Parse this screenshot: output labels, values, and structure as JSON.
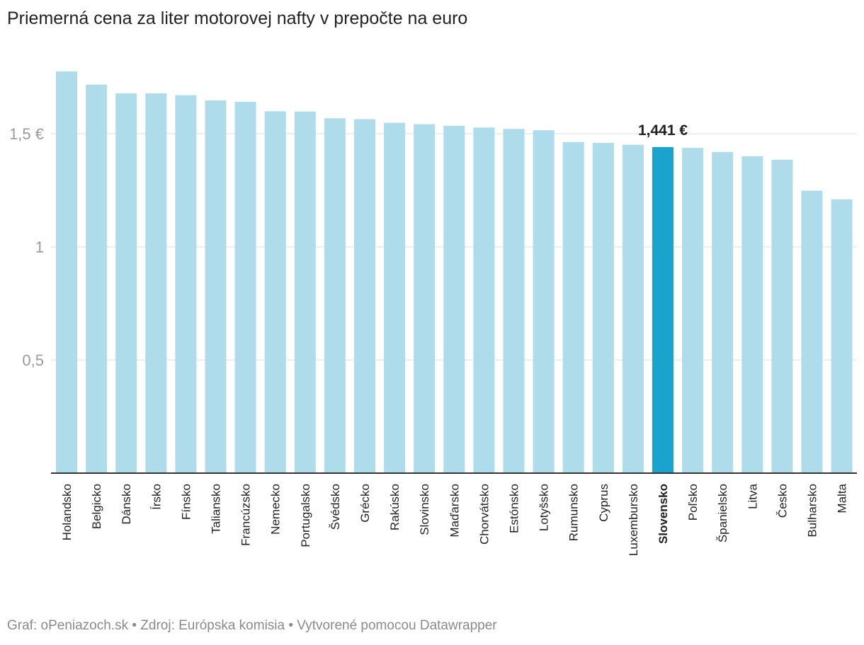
{
  "title": "Priemerná cena za liter motorovej nafty v prepočte na euro",
  "footer": "Graf: oPeniazoch.sk • Zdroj: Európska komisia • Vytvorené pomocou Datawrapper",
  "colors": {
    "bar": "#aedcea",
    "highlight": "#1aa3cc",
    "grid": "#dddddd",
    "axis": "#333333"
  },
  "chart_data": {
    "type": "bar",
    "title": "Priemerná cena za liter motorovej nafty v prepočte na euro",
    "xlabel": "",
    "ylabel": "",
    "ylim": [
      0,
      1.8
    ],
    "yticks": [
      {
        "value": 0.5,
        "label": "0,5"
      },
      {
        "value": 1,
        "label": "1"
      },
      {
        "value": 1.5,
        "label": "1,5 €"
      }
    ],
    "grid": true,
    "highlight_category": "Slovensko",
    "highlight_label": "1,441 €",
    "categories": [
      "Holandsko",
      "Belgicko",
      "Dánsko",
      "Írsko",
      "Fínsko",
      "Taliansko",
      "Francúzsko",
      "Nemecko",
      "Portugalsko",
      "Švédsko",
      "Grécko",
      "Rakúsko",
      "Slovinsko",
      "Maďarsko",
      "Chorvátsko",
      "Estónsko",
      "Lotyšsko",
      "Rumunsko",
      "Cyprus",
      "Luxembursko",
      "Slovensko",
      "Poľsko",
      "Španielsko",
      "Litva",
      "Česko",
      "Bulharsko",
      "Malta"
    ],
    "values": [
      1.775,
      1.717,
      1.678,
      1.678,
      1.67,
      1.647,
      1.641,
      1.599,
      1.598,
      1.568,
      1.564,
      1.548,
      1.542,
      1.535,
      1.527,
      1.521,
      1.515,
      1.463,
      1.459,
      1.451,
      1.441,
      1.437,
      1.419,
      1.4,
      1.385,
      1.248,
      1.21
    ]
  }
}
